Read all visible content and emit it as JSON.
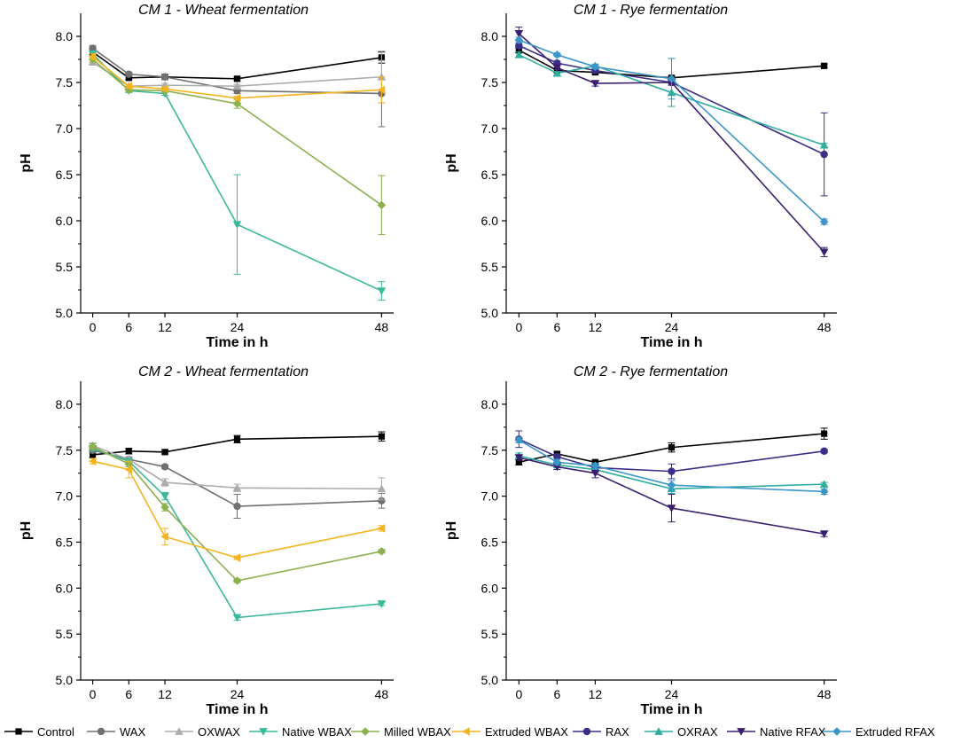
{
  "chart_data": [
    {
      "type": "line",
      "title": "CM 1 - Wheat fermentation",
      "xlabel": "Time in h",
      "ylabel": "pH",
      "x": [
        0,
        6,
        12,
        24,
        48
      ],
      "xlim": [
        -2,
        50
      ],
      "ylim": [
        5.0,
        8.25
      ],
      "yticks": [
        "5.0",
        "5.5",
        "6.0",
        "6.5",
        "7.0",
        "7.5",
        "8.0"
      ],
      "series": [
        {
          "name": "Control",
          "values": [
            7.83,
            7.55,
            7.56,
            7.54,
            7.77
          ],
          "errors": [
            0.03,
            0.02,
            0.02,
            0.02,
            0.06
          ]
        },
        {
          "name": "WAX",
          "values": [
            7.87,
            7.59,
            7.56,
            7.41,
            7.38
          ],
          "errors": [
            0.03,
            0.02,
            0.02,
            0.03,
            0.36
          ]
        },
        {
          "name": "OXWAX",
          "values": [
            7.72,
            7.46,
            7.47,
            7.46,
            7.56
          ],
          "errors": [
            0.03,
            0.02,
            0.02,
            0.02,
            0.28
          ]
        },
        {
          "name": "Native WBAX",
          "values": [
            7.81,
            7.41,
            7.38,
            5.96,
            5.24
          ],
          "errors": [
            0.03,
            0.02,
            0.02,
            0.54,
            0.1
          ]
        },
        {
          "name": "Milled WBAX",
          "values": [
            7.75,
            7.42,
            7.41,
            7.27,
            6.17
          ],
          "errors": [
            0.03,
            0.02,
            0.02,
            0.05,
            0.32
          ]
        },
        {
          "name": "Extruded WBAX",
          "values": [
            7.78,
            7.46,
            7.43,
            7.33,
            7.42
          ],
          "errors": [
            0.03,
            0.02,
            0.02,
            0.02,
            0.14
          ]
        }
      ]
    },
    {
      "type": "line",
      "title": "CM 1 - Rye fermentation",
      "xlabel": "Time in h",
      "ylabel": "pH",
      "x": [
        0,
        6,
        12,
        24,
        48
      ],
      "xlim": [
        -2,
        50
      ],
      "ylim": [
        5.0,
        8.25
      ],
      "yticks": [
        "5.0",
        "5.5",
        "6.0",
        "6.5",
        "7.0",
        "7.5",
        "8.0"
      ],
      "series": [
        {
          "name": "Control",
          "values": [
            7.85,
            7.63,
            7.61,
            7.55,
            7.68
          ],
          "errors": [
            0.03,
            0.02,
            0.02,
            0.02,
            0.02
          ]
        },
        {
          "name": "RAX",
          "values": [
            7.9,
            7.71,
            7.63,
            7.5,
            6.72
          ],
          "errors": [
            0.03,
            0.02,
            0.02,
            0.26,
            0.45
          ]
        },
        {
          "name": "OXRAX",
          "values": [
            7.8,
            7.6,
            7.68,
            7.39,
            6.82
          ],
          "errors": [
            0.03,
            0.02,
            0.02,
            0.15,
            0.02
          ]
        },
        {
          "name": "Native RFAX",
          "values": [
            8.03,
            7.66,
            7.49,
            7.5,
            5.66
          ],
          "errors": [
            0.07,
            0.02,
            0.03,
            0.03,
            0.05
          ]
        },
        {
          "name": "Extruded RFAX",
          "values": [
            7.96,
            7.8,
            7.67,
            7.54,
            5.99
          ],
          "errors": [
            0.03,
            0.02,
            0.02,
            0.22,
            0.03
          ]
        }
      ]
    },
    {
      "type": "line",
      "title": "CM 2 - Wheat fermentation",
      "xlabel": "Time in h",
      "ylabel": "pH",
      "x": [
        0,
        6,
        12,
        24,
        48
      ],
      "xlim": [
        -2,
        50
      ],
      "ylim": [
        5.0,
        8.25
      ],
      "yticks": [
        "5.0",
        "5.5",
        "6.0",
        "6.5",
        "7.0",
        "7.5",
        "8.0"
      ],
      "series": [
        {
          "name": "Control",
          "values": [
            7.45,
            7.49,
            7.48,
            7.62,
            7.65
          ],
          "errors": [
            0.03,
            0.03,
            0.02,
            0.04,
            0.05
          ]
        },
        {
          "name": "WAX",
          "values": [
            7.5,
            7.4,
            7.32,
            6.89,
            6.95
          ],
          "errors": [
            0.03,
            0.03,
            0.02,
            0.13,
            0.08
          ]
        },
        {
          "name": "OXWAX",
          "values": [
            7.55,
            7.4,
            7.15,
            7.09,
            7.08
          ],
          "errors": [
            0.03,
            0.03,
            0.04,
            0.04,
            0.12
          ]
        },
        {
          "name": "Native WBAX",
          "values": [
            7.52,
            7.38,
            7.0,
            5.68,
            5.83
          ],
          "errors": [
            0.03,
            0.03,
            0.04,
            0.03,
            0.02
          ]
        },
        {
          "name": "Milled WBAX",
          "values": [
            7.54,
            7.35,
            6.88,
            6.08,
            6.4
          ],
          "errors": [
            0.03,
            0.03,
            0.04,
            0.02,
            0.02
          ]
        },
        {
          "name": "Extruded WBAX",
          "values": [
            7.38,
            7.29,
            6.56,
            6.33,
            6.65
          ],
          "errors": [
            0.03,
            0.09,
            0.09,
            0.02,
            0.03
          ]
        }
      ]
    },
    {
      "type": "line",
      "title": "CM 2 - Rye fermentation",
      "xlabel": "Time in h",
      "ylabel": "pH",
      "x": [
        0,
        6,
        12,
        24,
        48
      ],
      "xlim": [
        -2,
        50
      ],
      "ylim": [
        5.0,
        8.25
      ],
      "yticks": [
        "5.0",
        "5.5",
        "6.0",
        "6.5",
        "7.0",
        "7.5",
        "8.0"
      ],
      "series": [
        {
          "name": "Control",
          "values": [
            7.37,
            7.46,
            7.37,
            7.53,
            7.68
          ],
          "errors": [
            0.03,
            0.02,
            0.02,
            0.05,
            0.06
          ]
        },
        {
          "name": "RAX",
          "values": [
            7.62,
            7.43,
            7.31,
            7.27,
            7.49
          ],
          "errors": [
            0.09,
            0.03,
            0.03,
            0.08,
            0.02
          ]
        },
        {
          "name": "OXRAX",
          "values": [
            7.44,
            7.34,
            7.29,
            7.08,
            7.13
          ],
          "errors": [
            0.03,
            0.03,
            0.03,
            0.05,
            0.02
          ]
        },
        {
          "name": "Native RFAX",
          "values": [
            7.42,
            7.32,
            7.25,
            6.87,
            6.59
          ],
          "errors": [
            0.03,
            0.03,
            0.05,
            0.15,
            0.03
          ]
        },
        {
          "name": "Extruded RFAX",
          "values": [
            7.61,
            7.37,
            7.33,
            7.12,
            7.05
          ],
          "errors": [
            0.03,
            0.03,
            0.03,
            0.05,
            0.03
          ]
        }
      ]
    }
  ],
  "legend": {
    "placement": "bottom",
    "entries": [
      {
        "name": "Control",
        "color": "#000000",
        "marker": "square"
      },
      {
        "name": "WAX",
        "color": "#707070",
        "marker": "circle"
      },
      {
        "name": "OXWAX",
        "color": "#acacac",
        "marker": "triangle-up"
      },
      {
        "name": "Native WBAX",
        "color": "#3cb89a",
        "marker": "triangle-down"
      },
      {
        "name": "Milled WBAX",
        "color": "#8bb04e",
        "marker": "diamond"
      },
      {
        "name": "Extruded WBAX",
        "color": "#f5b41e",
        "marker": "triangle-left"
      },
      {
        "name": "RAX",
        "color": "#3a2e86",
        "marker": "circle"
      },
      {
        "name": "OXRAX",
        "color": "#2fae9f",
        "marker": "triangle-up"
      },
      {
        "name": "Native RFAX",
        "color": "#3b1f6e",
        "marker": "triangle-down"
      },
      {
        "name": "Extruded RFAX",
        "color": "#3a95c8",
        "marker": "diamond"
      }
    ]
  }
}
